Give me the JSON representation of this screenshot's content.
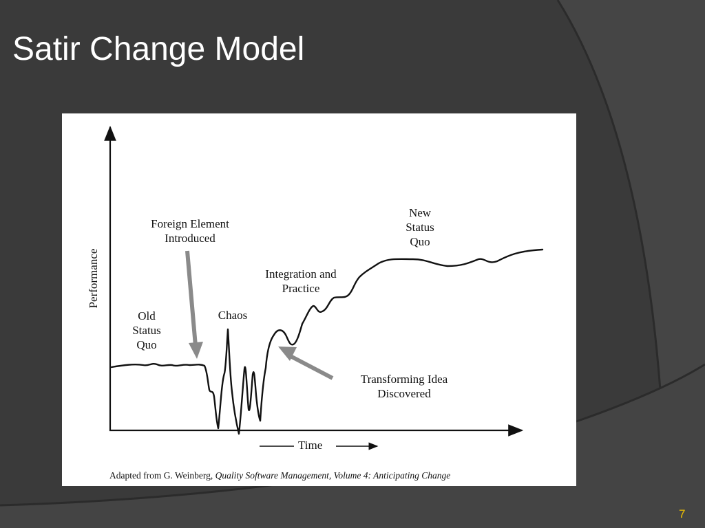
{
  "slide": {
    "title": "Satir Change Model",
    "page_number": "7",
    "accent_color": "#f2c200",
    "background_color": "#3a3a3a"
  },
  "diagram": {
    "y_axis_label": "Performance",
    "x_axis_label": "Time",
    "labels": {
      "old_status_quo": [
        "Old",
        "Status",
        "Quo"
      ],
      "foreign_element": [
        "Foreign Element",
        "Introduced"
      ],
      "chaos": "Chaos",
      "integration": [
        "Integration and",
        "Practice"
      ],
      "new_status_quo": [
        "New",
        "Status",
        "Quo"
      ],
      "transforming_idea": [
        "Transforming Idea",
        "Discovered"
      ]
    },
    "credit": {
      "prefix": "Adapted from G. Weinberg, ",
      "book": "Quality Software Management, Volume 4: Anticipating Change"
    },
    "arrow_color": "#8a8a8a"
  }
}
